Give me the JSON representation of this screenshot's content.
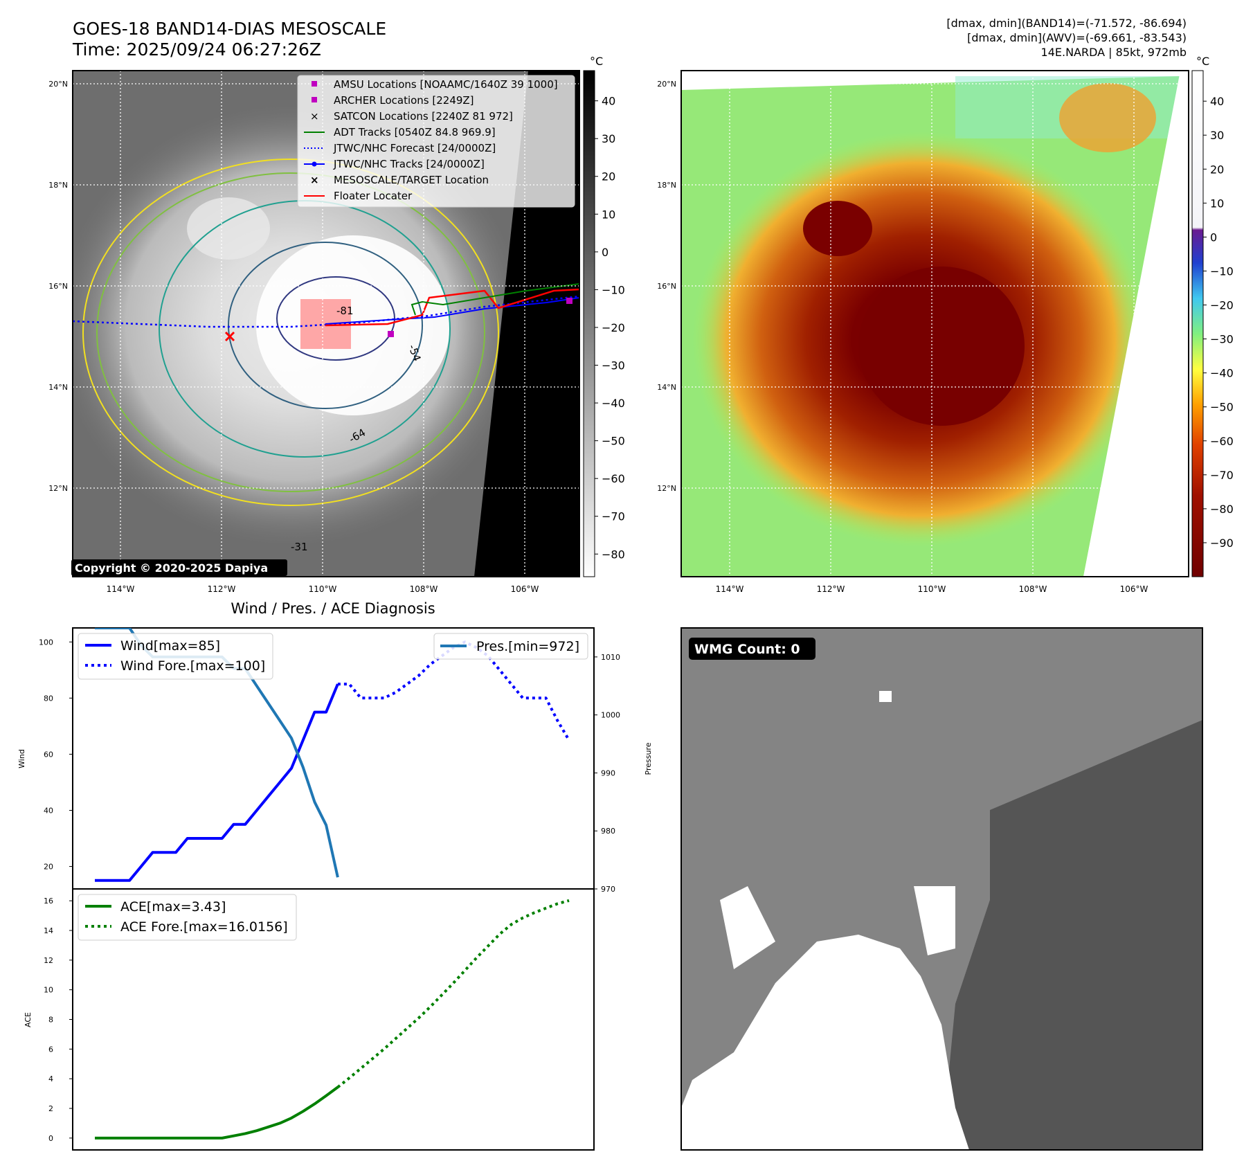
{
  "header": {
    "title": "GOES-18 BAND14-DIAS MESOSCALE",
    "time": "Time: 2025/09/24 06:27:26Z",
    "stats_band14": "[dmax, dmin](BAND14)=(-71.572, -86.694)",
    "stats_awv": "[dmax, dmin](AWV)=(-69.661, -83.543)",
    "storm_info": "14E.NARDA | 85kt, 972mb"
  },
  "map_axes": {
    "lat_labels": [
      "20°N",
      "18°N",
      "16°N",
      "14°N",
      "12°N"
    ],
    "lon_labels": [
      "114°W",
      "112°W",
      "110°W",
      "108°W",
      "106°W"
    ]
  },
  "colorbar_left": {
    "unit": "°C",
    "ticks": [
      "40",
      "30",
      "20",
      "10",
      "0",
      "−10",
      "−20",
      "−30",
      "−40",
      "−50",
      "−60",
      "−70",
      "−80"
    ]
  },
  "colorbar_right": {
    "unit": "°C",
    "ticks": [
      "40",
      "30",
      "20",
      "10",
      "0",
      "−10",
      "−20",
      "−30",
      "−40",
      "−50",
      "−60",
      "−70",
      "−80",
      "−90"
    ]
  },
  "legend_map": [
    {
      "label": "AMSU Locations [NOAAMC/1640Z 39 1000]",
      "marker": "square",
      "color": "#c000c0"
    },
    {
      "label": "ARCHER Locations [2249Z]",
      "marker": "square",
      "color": "#c000c0"
    },
    {
      "label": "SATCON Locations [2240Z 81 972]",
      "marker": "x",
      "color": "#00b0b0"
    },
    {
      "label": "ADT Tracks [0540Z 84.8 969.9]",
      "marker": "line",
      "color": "#008000"
    },
    {
      "label": "JTWC/NHC Forecast [24/0000Z]",
      "marker": "dotted",
      "color": "#0000ff"
    },
    {
      "label": "JTWC/NHC Tracks [24/0000Z]",
      "marker": "line-dot",
      "color": "#0000ff"
    },
    {
      "label": "MESOSCALE/TARGET Location",
      "marker": "x",
      "color": "#ff0000"
    },
    {
      "label": "Floater Locater",
      "marker": "line",
      "color": "#ff0000"
    }
  ],
  "copyright": "Copyright © 2020-2025 Dapiya",
  "contour_labels": [
    "-81",
    "-64",
    "-54",
    "-31"
  ],
  "diagnosis": {
    "title": "Wind / Pres. / ACE Diagnosis",
    "wind_ylabel": "Wind",
    "pres_ylabel": "Pressure",
    "ace_ylabel": "ACE",
    "legend_wind": "Wind[max=85]",
    "legend_wind_fore": "Wind Fore.[max=100]",
    "legend_pres": "Pres.[min=972]",
    "legend_ace": "ACE[max=3.43]",
    "legend_ace_fore": "ACE Fore.[max=16.0156]"
  },
  "wmg": {
    "label": "WMG Count: 0"
  },
  "chart_data": [
    {
      "type": "line",
      "title": "Wind / Pres. / ACE Diagnosis",
      "ylabel": "Wind",
      "ylim": [
        12,
        105
      ],
      "yticks": [
        20,
        40,
        60,
        80,
        100
      ],
      "series": [
        {
          "name": "Wind[max=85]",
          "x": [
            0,
            1,
            2,
            3,
            4,
            5,
            6,
            7,
            8,
            9,
            10,
            11,
            12,
            13,
            14,
            15,
            16,
            17,
            18,
            19,
            20,
            21
          ],
          "values": [
            15,
            15,
            15,
            15,
            20,
            25,
            25,
            25,
            30,
            30,
            30,
            30,
            35,
            35,
            40,
            45,
            50,
            55,
            65,
            75,
            75,
            85
          ]
        },
        {
          "name": "Wind Fore.[max=100]",
          "x": [
            21,
            22,
            23,
            24,
            25,
            26,
            27,
            28,
            29,
            30,
            31,
            32,
            33,
            34,
            35,
            36,
            37,
            38,
            39,
            40,
            41
          ],
          "values": [
            85,
            85,
            80,
            80,
            80,
            82,
            85,
            88,
            92,
            95,
            98,
            100,
            98,
            95,
            90,
            85,
            80,
            80,
            80,
            72,
            65
          ]
        }
      ]
    },
    {
      "type": "line",
      "ylabel": "Pressure",
      "ylim": [
        970,
        1015
      ],
      "yticks": [
        970,
        980,
        990,
        1000,
        1010
      ],
      "series": [
        {
          "name": "Pres.[min=972]",
          "x": [
            0,
            1,
            2,
            3,
            4,
            5,
            6,
            7,
            8,
            9,
            10,
            11,
            12,
            13,
            14,
            15,
            16,
            17,
            18,
            19,
            20,
            21
          ],
          "values": [
            1015,
            1015,
            1015,
            1015,
            1012,
            1010,
            1010,
            1010,
            1010,
            1010,
            1010,
            1010,
            1008,
            1008,
            1005,
            1002,
            999,
            996,
            991,
            985,
            981,
            972
          ]
        }
      ]
    },
    {
      "type": "line",
      "ylabel": "ACE",
      "ylim": [
        -0.8,
        16.8
      ],
      "yticks": [
        0,
        2,
        4,
        6,
        8,
        10,
        12,
        14,
        16
      ],
      "series": [
        {
          "name": "ACE[max=3.43]",
          "x": [
            0,
            1,
            2,
            3,
            4,
            5,
            6,
            7,
            8,
            9,
            10,
            11,
            12,
            13,
            14,
            15,
            16,
            17,
            18,
            19,
            20,
            21
          ],
          "values": [
            0,
            0,
            0,
            0,
            0,
            0,
            0,
            0,
            0,
            0,
            0,
            0,
            0.15,
            0.3,
            0.5,
            0.75,
            1.0,
            1.35,
            1.8,
            2.3,
            2.85,
            3.43
          ]
        },
        {
          "name": "ACE Fore.[max=16.0156]",
          "x": [
            21,
            22,
            23,
            24,
            25,
            26,
            27,
            28,
            29,
            30,
            31,
            32,
            33,
            34,
            35,
            36,
            37,
            38,
            39,
            40,
            41
          ],
          "values": [
            3.43,
            4.05,
            4.7,
            5.35,
            6.0,
            6.7,
            7.4,
            8.1,
            8.85,
            9.65,
            10.45,
            11.3,
            12.15,
            12.95,
            13.75,
            14.4,
            14.85,
            15.2,
            15.5,
            15.8,
            16.0156
          ]
        }
      ]
    }
  ]
}
